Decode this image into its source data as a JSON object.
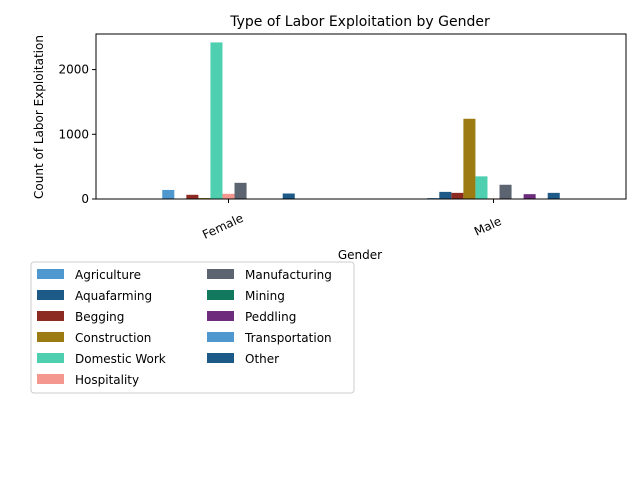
{
  "chart_data": {
    "type": "bar",
    "title": "Type of Labor Exploitation by Gender",
    "xlabel": "Gender",
    "ylabel": "Count of Labor Exploitation",
    "categories": [
      "Female",
      "Male"
    ],
    "ylim": [
      0,
      2550
    ],
    "yticks": [
      0,
      1000,
      2000
    ],
    "legend_position": "below-left",
    "legend_columns": 2,
    "series": [
      {
        "name": "Agriculture",
        "color": "#4e98cf",
        "values": [
          140,
          15
        ]
      },
      {
        "name": "Aquafarming",
        "color": "#1d5a87",
        "values": [
          5,
          110
        ]
      },
      {
        "name": "Begging",
        "color": "#8d2b23",
        "values": [
          65,
          95
        ]
      },
      {
        "name": "Construction",
        "color": "#9c7c12",
        "values": [
          15,
          1240
        ]
      },
      {
        "name": "Domestic Work",
        "color": "#4ecfb0",
        "values": [
          2420,
          350
        ]
      },
      {
        "name": "Hospitality",
        "color": "#f4978e",
        "values": [
          80,
          10
        ]
      },
      {
        "name": "Manufacturing",
        "color": "#5b6470",
        "values": [
          250,
          220
        ]
      },
      {
        "name": "Mining",
        "color": "#12795e",
        "values": [
          0,
          5
        ]
      },
      {
        "name": "Peddling",
        "color": "#6e2d7c",
        "values": [
          0,
          75
        ]
      },
      {
        "name": "Transportation",
        "color": "#4e98cf",
        "values": [
          0,
          5
        ]
      },
      {
        "name": "Other",
        "color": "#1d5a87",
        "values": [
          85,
          95
        ]
      }
    ]
  }
}
